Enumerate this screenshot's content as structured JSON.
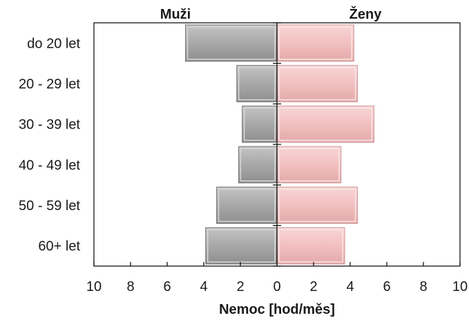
{
  "chart_data": {
    "type": "bar",
    "orientation": "horizontal-population-pyramid",
    "categories": [
      "do 20 let",
      "20 - 29 let",
      "30 - 39 let",
      "40 - 49 let",
      "50 - 59 let",
      "60+ let"
    ],
    "series": [
      {
        "name": "Muži",
        "values": [
          5.0,
          2.2,
          1.9,
          2.1,
          3.3,
          3.9
        ],
        "color": "#a9a9a9",
        "side": "left"
      },
      {
        "name": "Ženy",
        "values": [
          4.2,
          4.4,
          5.3,
          3.5,
          4.4,
          3.7
        ],
        "color": "#f4c2c2",
        "side": "right"
      }
    ],
    "xlabel": "Nemoc [hod/měs]",
    "xticks": [
      "10",
      "8",
      "6",
      "4",
      "2",
      "0",
      "2",
      "4",
      "6",
      "8",
      "10"
    ],
    "xlim": [
      -10,
      10
    ],
    "grid": false
  }
}
